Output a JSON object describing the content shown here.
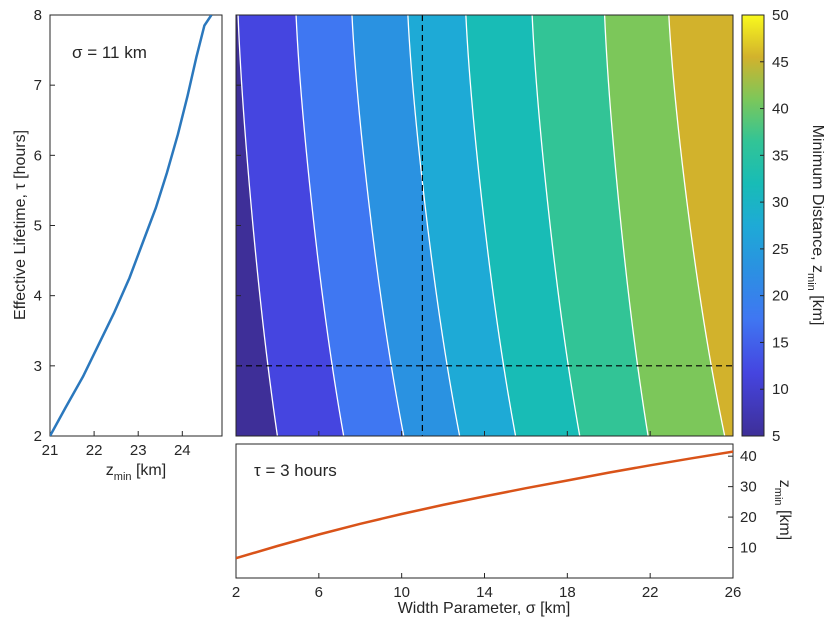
{
  "chart_data": [
    {
      "type": "line",
      "panel": "left",
      "annotation": "σ = 11 km",
      "xlabel": "z",
      "xlabel_sub": "min",
      "xlabel_unit": " [km]",
      "ylabel": "Effective Lifetime, τ [hours]",
      "xlim": [
        21,
        24.9
      ],
      "ylim": [
        2,
        8
      ],
      "xticks": [
        "21",
        "22",
        "23",
        "24"
      ],
      "yticks": [
        "2",
        "3",
        "4",
        "5",
        "6",
        "7",
        "8"
      ],
      "series": [
        {
          "color": "#2b78bd",
          "x": [
            21.0,
            21.35,
            21.75,
            22.1,
            22.45,
            22.8,
            23.1,
            23.4,
            23.65,
            23.9,
            24.12,
            24.32,
            24.5,
            24.66
          ],
          "y": [
            2.0,
            2.4,
            2.85,
            3.3,
            3.75,
            4.25,
            4.75,
            5.25,
            5.75,
            6.3,
            6.85,
            7.4,
            7.85,
            8.0
          ]
        }
      ]
    },
    {
      "type": "heatmap",
      "panel": "main",
      "xlim": [
        2,
        26
      ],
      "ylim": [
        2,
        8
      ],
      "colorbar_label": "Minimum Distance, z",
      "colorbar_sub": "min",
      "colorbar_unit": " [km]",
      "colorbar_ticks": [
        "5",
        "10",
        "15",
        "20",
        "25",
        "30",
        "35",
        "40",
        "45",
        "50"
      ],
      "colorbar_range": [
        5,
        50
      ],
      "reference_lines": {
        "sigma": 11,
        "tau": 3
      },
      "band_colors": [
        "#3e2f98",
        "#4545e0",
        "#3f77f2",
        "#2a92e1",
        "#1eaad6",
        "#18bcb6",
        "#32c496",
        "#7cc75a",
        "#d2b22c"
      ],
      "contour_levels": [
        {
          "level": 5,
          "x_at_tau2": 4.0,
          "x_at_tau8": 2.1
        },
        {
          "level": 10,
          "x_at_tau2": 7.2,
          "x_at_tau8": 4.9
        },
        {
          "level": 15,
          "x_at_tau2": 10.1,
          "x_at_tau8": 7.6
        },
        {
          "level": 20,
          "x_at_tau2": 12.8,
          "x_at_tau8": 10.3
        },
        {
          "level": 25,
          "x_at_tau2": 15.5,
          "x_at_tau8": 13.1
        },
        {
          "level": 30,
          "x_at_tau2": 18.6,
          "x_at_tau8": 16.3
        },
        {
          "level": 35,
          "x_at_tau2": 21.9,
          "x_at_tau8": 19.8
        },
        {
          "level": 40,
          "x_at_tau2": 25.6,
          "x_at_tau8": 22.9
        }
      ]
    },
    {
      "type": "line",
      "panel": "bottom",
      "annotation": "τ = 3 hours",
      "xlabel": "Width Parameter, σ [km]",
      "ylabel": "z",
      "ylabel_sub": "min",
      "ylabel_unit": " [km]",
      "xlim": [
        2,
        26
      ],
      "ylim": [
        0,
        44
      ],
      "xticks": [
        "2",
        "6",
        "10",
        "14",
        "18",
        "22",
        "26"
      ],
      "yticks": [
        "10",
        "20",
        "30",
        "40"
      ],
      "series": [
        {
          "color": "#d95319",
          "x": [
            2,
            4,
            6,
            8,
            10,
            12,
            14,
            16,
            18,
            20,
            22,
            24,
            26
          ],
          "y": [
            6.5,
            10.5,
            14.3,
            17.8,
            21.0,
            24.0,
            26.8,
            29.5,
            32.0,
            34.6,
            37.0,
            39.3,
            41.5
          ]
        }
      ]
    }
  ]
}
